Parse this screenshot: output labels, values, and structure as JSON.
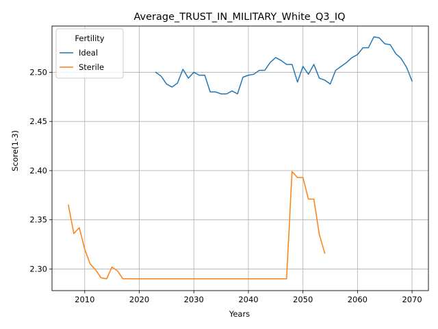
{
  "chart_data": {
    "type": "line",
    "title": "Average_TRUST_IN_MILITARY_White_Q3_IQ",
    "xlabel": "Years",
    "ylabel": "Score(1-3)",
    "xlim": [
      2004,
      2073
    ],
    "ylim": [
      2.278,
      2.547
    ],
    "xticks": [
      2010,
      2020,
      2030,
      2040,
      2050,
      2060,
      2070
    ],
    "yticks": [
      2.3,
      2.35,
      2.4,
      2.45,
      2.5
    ],
    "xtick_labels": [
      "2010",
      "2020",
      "2030",
      "2040",
      "2050",
      "2060",
      "2070"
    ],
    "ytick_labels": [
      "2.30",
      "2.35",
      "2.40",
      "2.45",
      "2.50"
    ],
    "grid": true,
    "legend": {
      "title": "Fertility",
      "position": "top-left"
    },
    "series": [
      {
        "name": "Ideal",
        "color": "#1f77b4",
        "x": [
          2023,
          2024,
          2025,
          2026,
          2027,
          2028,
          2029,
          2030,
          2031,
          2032,
          2033,
          2034,
          2035,
          2036,
          2037,
          2038,
          2039,
          2040,
          2041,
          2042,
          2043,
          2044,
          2045,
          2046,
          2047,
          2048,
          2049,
          2050,
          2051,
          2052,
          2053,
          2054,
          2055,
          2056,
          2057,
          2058,
          2059,
          2060,
          2061,
          2062,
          2063,
          2064,
          2065,
          2066,
          2067,
          2068,
          2069,
          2070
        ],
        "y": [
          2.5,
          2.496,
          2.488,
          2.485,
          2.489,
          2.503,
          2.494,
          2.5,
          2.497,
          2.497,
          2.48,
          2.48,
          2.478,
          2.478,
          2.481,
          2.478,
          2.495,
          2.497,
          2.498,
          2.502,
          2.502,
          2.51,
          2.515,
          2.512,
          2.508,
          2.508,
          2.49,
          2.506,
          2.498,
          2.508,
          2.494,
          2.492,
          2.488,
          2.502,
          2.506,
          2.51,
          2.515,
          2.518,
          2.525,
          2.525,
          2.536,
          2.535,
          2.529,
          2.528,
          2.519,
          2.514,
          2.505,
          2.491
        ]
      },
      {
        "name": "Sterile",
        "color": "#ff7f0e",
        "x": [
          2007,
          2008,
          2009,
          2010,
          2011,
          2012,
          2013,
          2014,
          2015,
          2016,
          2017,
          2018,
          2019,
          2020,
          2021,
          2022,
          2023,
          2024,
          2025,
          2026,
          2027,
          2028,
          2029,
          2030,
          2031,
          2032,
          2033,
          2034,
          2035,
          2036,
          2037,
          2038,
          2039,
          2040,
          2041,
          2042,
          2043,
          2044,
          2045,
          2046,
          2047,
          2048,
          2049,
          2050,
          2051,
          2052,
          2053,
          2054
        ],
        "y": [
          2.365,
          2.336,
          2.342,
          2.32,
          2.305,
          2.299,
          2.291,
          2.29,
          2.302,
          2.298,
          2.29,
          2.29,
          2.29,
          2.29,
          2.29,
          2.29,
          2.29,
          2.29,
          2.29,
          2.29,
          2.29,
          2.29,
          2.29,
          2.29,
          2.29,
          2.29,
          2.29,
          2.29,
          2.29,
          2.29,
          2.29,
          2.29,
          2.29,
          2.29,
          2.29,
          2.29,
          2.29,
          2.29,
          2.29,
          2.29,
          2.29,
          2.399,
          2.393,
          2.393,
          2.371,
          2.371,
          2.335,
          2.316
        ]
      }
    ]
  }
}
